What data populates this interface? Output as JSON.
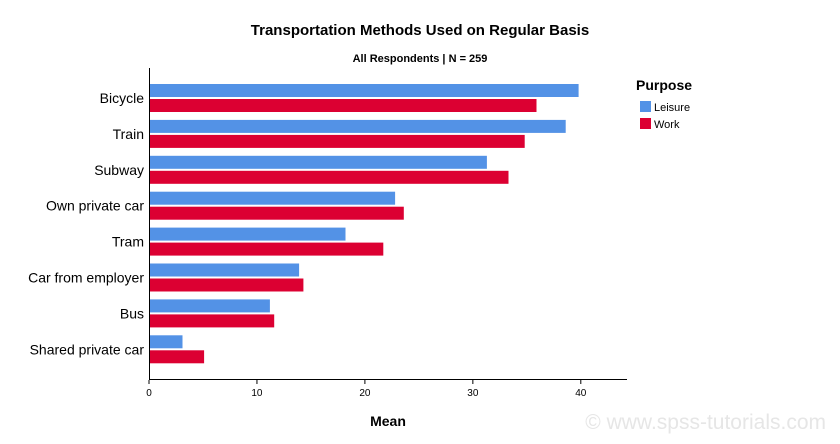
{
  "chart_data": {
    "type": "bar",
    "orientation": "horizontal",
    "title": "Transportation Methods Used on Regular Basis",
    "subtitle": "All Respondents | N = 259",
    "xlabel": "Mean",
    "ylabel": "",
    "xlim": [
      0,
      44
    ],
    "xticks": [
      0,
      10,
      20,
      30,
      40
    ],
    "grid": false,
    "legend_title": "Purpose",
    "legend_position": "top-right",
    "categories": [
      "Bicycle",
      "Train",
      "Subway",
      "Own private car",
      "Tram",
      "Car from employer",
      "Bus",
      "Shared private car"
    ],
    "series": [
      {
        "name": "Leisure",
        "color": "#5392e6",
        "values": [
          39.8,
          38.6,
          31.3,
          22.8,
          18.2,
          13.9,
          11.2,
          3.1
        ]
      },
      {
        "name": "Work",
        "color": "#dc0032",
        "values": [
          35.9,
          34.8,
          33.3,
          23.6,
          21.7,
          14.3,
          11.6,
          5.1
        ]
      }
    ]
  },
  "watermark": "© www.spss-tutorials.com"
}
